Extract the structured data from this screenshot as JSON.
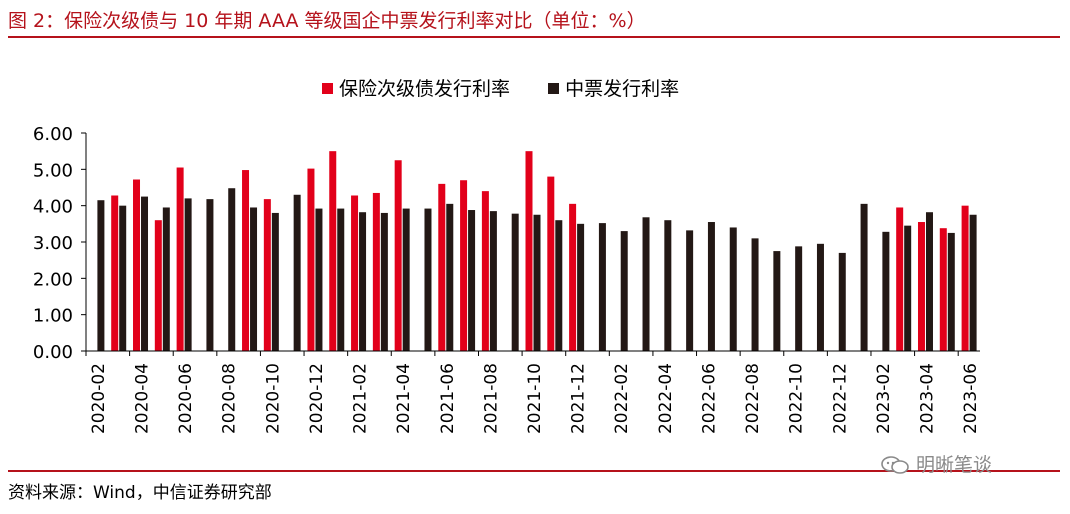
{
  "title": "图 2：保险次级债与 10 年期 AAA 等级国企中票发行利率对比（单位：%）",
  "source": "资料来源：Wind，中信证券研究部",
  "watermark": "明晰笔谈",
  "colors": {
    "series1": "#e2001a",
    "series2": "#231815",
    "rule": "#b5121b",
    "axis": "#000000"
  },
  "chart_data": {
    "type": "bar",
    "title": "",
    "xlabel": "",
    "ylabel": "",
    "ylim": [
      0,
      6
    ],
    "yticks": [
      "0.00",
      "1.00",
      "2.00",
      "3.00",
      "4.00",
      "5.00",
      "6.00"
    ],
    "grid": false,
    "legend_position": "top-center",
    "categories": [
      "2020-02",
      "2020-03",
      "2020-04",
      "2020-05",
      "2020-06",
      "2020-07",
      "2020-08",
      "2020-09",
      "2020-10",
      "2020-11",
      "2020-12",
      "2021-01",
      "2021-02",
      "2021-03",
      "2021-04",
      "2021-05",
      "2021-06",
      "2021-07",
      "2021-08",
      "2021-09",
      "2021-10",
      "2021-11",
      "2021-12",
      "2022-01",
      "2022-02",
      "2022-03",
      "2022-04",
      "2022-05",
      "2022-06",
      "2022-07",
      "2022-08",
      "2022-09",
      "2022-10",
      "2022-11",
      "2022-12",
      "2023-01",
      "2023-02",
      "2023-03",
      "2023-04",
      "2023-05",
      "2023-06"
    ],
    "xtick_labels": [
      "2020-02",
      "2020-04",
      "2020-06",
      "2020-08",
      "2020-10",
      "2020-12",
      "2021-02",
      "2021-04",
      "2021-06",
      "2021-08",
      "2021-10",
      "2021-12",
      "2022-02",
      "2022-04",
      "2022-06",
      "2022-08",
      "2022-10",
      "2022-12",
      "2023-02",
      "2023-04",
      "2023-06"
    ],
    "series": [
      {
        "name": "保险次级债发行利率",
        "values": [
          null,
          4.28,
          4.72,
          3.6,
          5.05,
          null,
          null,
          4.98,
          4.18,
          null,
          5.02,
          5.5,
          4.28,
          4.35,
          5.25,
          null,
          4.6,
          4.7,
          4.4,
          null,
          5.5,
          4.8,
          4.05,
          null,
          null,
          null,
          null,
          null,
          null,
          null,
          null,
          null,
          null,
          null,
          null,
          null,
          null,
          3.95,
          3.55,
          3.38,
          4.0
        ]
      },
      {
        "name": "中票发行利率",
        "values": [
          4.15,
          4.0,
          4.25,
          3.95,
          4.2,
          4.18,
          4.48,
          3.95,
          3.8,
          4.3,
          3.92,
          3.92,
          3.82,
          3.8,
          3.92,
          3.92,
          4.05,
          3.88,
          3.85,
          3.78,
          3.75,
          3.6,
          3.5,
          3.52,
          3.3,
          3.68,
          3.6,
          3.32,
          3.55,
          3.4,
          3.1,
          2.75,
          2.88,
          2.95,
          2.7,
          4.05,
          3.28,
          3.45,
          3.82,
          3.25,
          3.75
        ]
      }
    ]
  }
}
